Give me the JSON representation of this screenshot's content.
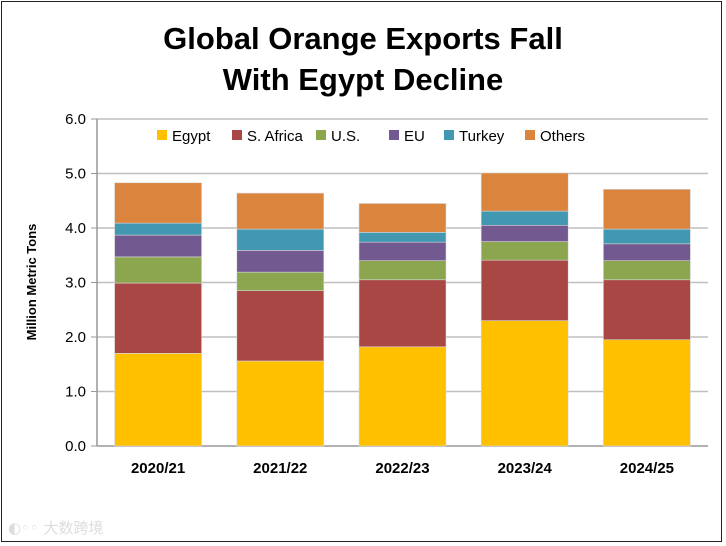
{
  "chart_data": {
    "type": "bar",
    "stacked": true,
    "title_lines": [
      "Global Orange Exports Fall",
      "With Egypt Decline"
    ],
    "xlabel": "",
    "ylabel": "Million Metric Tons",
    "ylim": [
      0,
      6
    ],
    "yticks": [
      "0.0",
      "1.0",
      "2.0",
      "3.0",
      "4.0",
      "5.0",
      "6.0"
    ],
    "grid": true,
    "legend_position": "top",
    "categories": [
      "2020/21",
      "2021/22",
      "2022/23",
      "2023/24",
      "2024/25"
    ],
    "series": [
      {
        "name": "Egypt",
        "color": "#FFC000",
        "values": [
          1.7,
          1.56,
          1.82,
          2.3,
          1.95
        ]
      },
      {
        "name": "S. Africa",
        "color": "#A84743",
        "values": [
          1.29,
          1.29,
          1.23,
          1.11,
          1.1
        ]
      },
      {
        "name": "U.S.",
        "color": "#8BA64F",
        "values": [
          0.48,
          0.34,
          0.35,
          0.34,
          0.35
        ]
      },
      {
        "name": "EU",
        "color": "#725990",
        "values": [
          0.4,
          0.4,
          0.34,
          0.3,
          0.31
        ]
      },
      {
        "name": "Turkey",
        "color": "#4198B0",
        "values": [
          0.22,
          0.39,
          0.18,
          0.26,
          0.27
        ]
      },
      {
        "name": "Others",
        "color": "#DB843D",
        "values": [
          0.74,
          0.66,
          0.53,
          0.7,
          0.73
        ]
      }
    ]
  },
  "watermark": "大数跨境"
}
